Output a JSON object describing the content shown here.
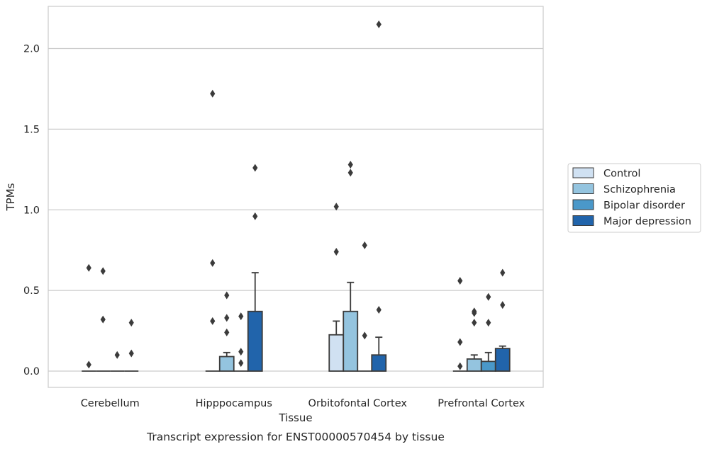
{
  "chart_data": {
    "type": "bar",
    "title": "Transcript expression for ENST00000570454 by tissue",
    "xlabel": "Tissue",
    "ylabel": "TPMs",
    "ylim": [
      -0.1,
      2.25
    ],
    "yticks": [
      0.0,
      0.5,
      1.0,
      1.5,
      2.0
    ],
    "ytick_labels": [
      "0.0",
      "0.5",
      "1.0",
      "1.5",
      "2.0"
    ],
    "grid": true,
    "legend_position": "right",
    "categories": [
      "Cerebellum",
      "Hipppocampus",
      "Orbitofontal Cortex",
      "Prefrontal Cortex"
    ],
    "series": [
      {
        "name": "Control",
        "color": "#d0e1f2",
        "values": [
          0.0,
          0.0,
          0.225,
          0.0
        ],
        "error_upper": [
          null,
          null,
          0.31,
          null
        ],
        "outliers": [
          [
            0.04,
            0.64
          ],
          [
            0.67,
            0.31,
            1.72
          ],
          [
            0.74,
            1.02
          ],
          [
            0.03,
            0.18,
            0.56
          ]
        ]
      },
      {
        "name": "Schizophrenia",
        "color": "#94c4df",
        "values": [
          0.0,
          0.09,
          0.37,
          0.075
        ],
        "error_upper": [
          null,
          0.115,
          0.55,
          0.1
        ],
        "outliers": [
          [
            0.62,
            0.32
          ],
          [
            0.24,
            0.33,
            0.47
          ],
          [
            1.28,
            1.23
          ],
          [
            0.3,
            0.36,
            0.37
          ]
        ]
      },
      {
        "name": "Bipolar disorder",
        "color": "#4a98c9",
        "values": [
          0.0,
          0.0,
          0.0,
          0.06
        ],
        "error_upper": [
          null,
          null,
          null,
          0.115
        ],
        "outliers": [
          [
            0.1
          ],
          [
            0.05,
            0.12,
            0.34
          ],
          [
            0.78,
            0.22
          ],
          [
            0.3,
            0.46
          ]
        ]
      },
      {
        "name": "Major depression",
        "color": "#2164ab",
        "values": [
          0.0,
          0.37,
          0.1,
          0.14
        ],
        "error_upper": [
          null,
          0.61,
          0.21,
          0.155
        ],
        "outliers": [
          [
            0.11,
            0.3
          ],
          [
            0.96,
            1.26
          ],
          [
            0.38,
            2.15
          ],
          [
            0.41,
            0.61
          ]
        ]
      }
    ]
  }
}
